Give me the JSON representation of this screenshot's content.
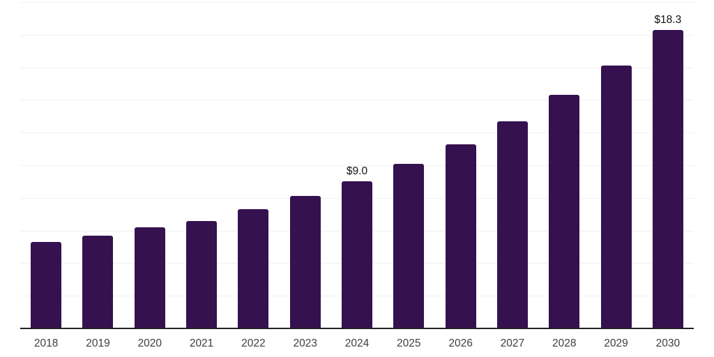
{
  "chart_data": {
    "type": "bar",
    "title": "",
    "xlabel": "",
    "ylabel": "",
    "categories": [
      "2018",
      "2019",
      "2020",
      "2021",
      "2022",
      "2023",
      "2024",
      "2025",
      "2026",
      "2027",
      "2028",
      "2029",
      "2030"
    ],
    "values": [
      5.3,
      5.7,
      6.2,
      6.6,
      7.3,
      8.1,
      9.0,
      10.1,
      11.3,
      12.7,
      14.3,
      16.1,
      18.3
    ],
    "data_labels": [
      {
        "category": "2024",
        "text": "$9.0"
      },
      {
        "category": "2030",
        "text": "$18.3"
      }
    ],
    "ylim": [
      0,
      20
    ],
    "gridline_interval": 2,
    "grid": true,
    "legend": false,
    "y_tick_labels_visible": false
  },
  "styling": {
    "bar_color": "#35114F",
    "gridline_color": "#f0f0f0",
    "axis_line_color": "#222222",
    "tick_label_color": "#3d3d3d",
    "data_label_color": "#111111",
    "background_color": "#ffffff"
  }
}
